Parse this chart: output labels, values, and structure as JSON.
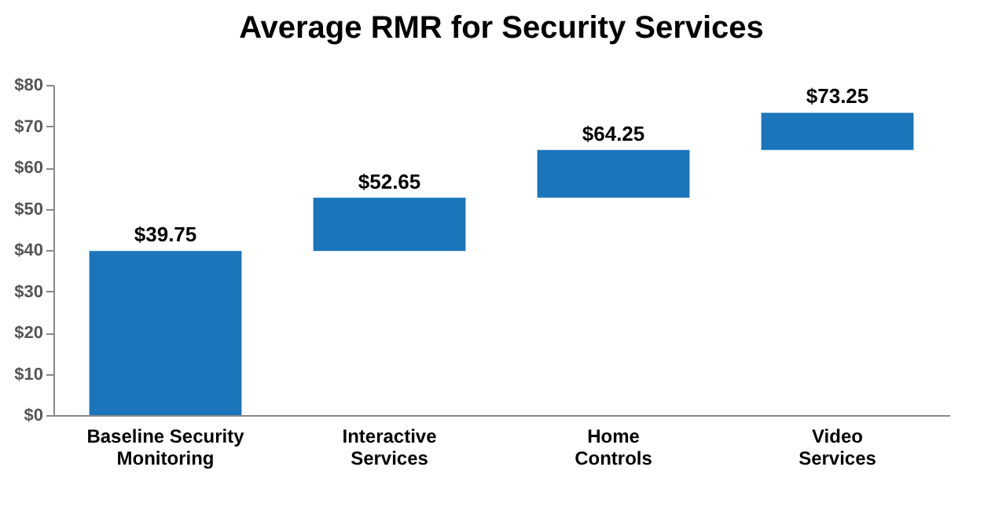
{
  "chart_data": {
    "type": "bar",
    "title": "Average RMR for Security Services",
    "categories": [
      "Baseline Security\nMonitoring",
      "Interactive\nServices",
      "Home\nControls",
      "Video\nServices"
    ],
    "base": [
      0,
      39.75,
      52.65,
      64.25
    ],
    "values": [
      39.75,
      12.9,
      11.6,
      9.0
    ],
    "value_labels": [
      "$39.75",
      "$52.65",
      "$64.25",
      "$73.25"
    ],
    "color": "#1a75bb",
    "ylim": [
      0,
      80
    ],
    "yticks": [
      {
        "value": 0,
        "label": "$0"
      },
      {
        "value": 10,
        "label": "$10"
      },
      {
        "value": 20,
        "label": "$20"
      },
      {
        "value": 30,
        "label": "$30"
      },
      {
        "value": 40,
        "label": "$40"
      },
      {
        "value": 50,
        "label": "$50"
      },
      {
        "value": 60,
        "label": "$60"
      },
      {
        "value": 70,
        "label": "$70"
      },
      {
        "value": 80,
        "label": "$80"
      }
    ],
    "grid": false
  }
}
